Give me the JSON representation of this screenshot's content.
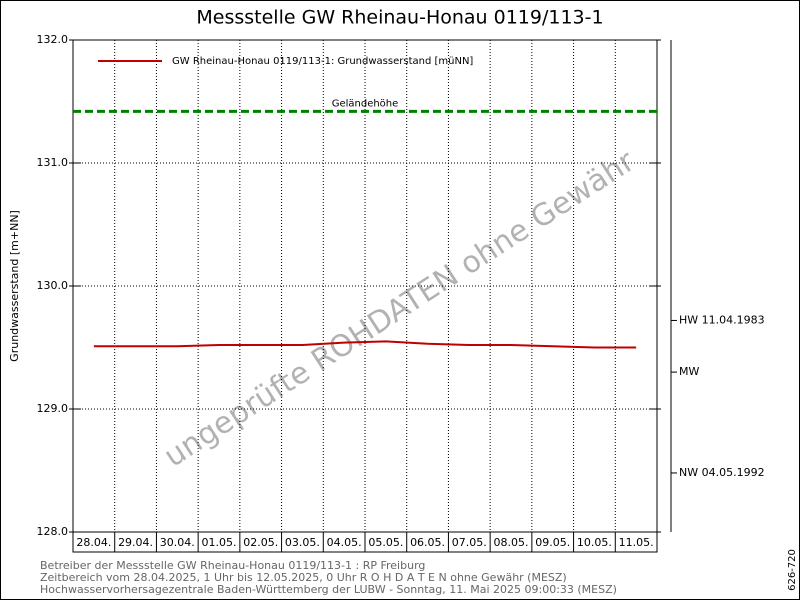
{
  "chart_data": {
    "type": "line",
    "title": "Messstelle GW Rheinau-Honau 0119/113-1",
    "ylabel": "Grundwasserstand [m+NN]",
    "categories": [
      "28.04.",
      "29.04.",
      "30.04.",
      "01.05.",
      "02.05.",
      "03.05.",
      "04.05.",
      "05.05.",
      "06.05.",
      "07.05.",
      "08.05.",
      "09.05.",
      "10.05.",
      "11.05."
    ],
    "series": [
      {
        "name": "GW Rheinau-Honau 0119/113-1: Grundwasserstand [müNN]",
        "color": "#c00000",
        "values": [
          129.51,
          129.51,
          129.51,
          129.52,
          129.52,
          129.52,
          129.54,
          129.55,
          129.53,
          129.52,
          129.52,
          129.51,
          129.5,
          129.5
        ]
      }
    ],
    "ylim": [
      128,
      132
    ],
    "yticks": [
      {
        "value": 128,
        "label": "128.0"
      },
      {
        "value": 129,
        "label": "129.0"
      },
      {
        "value": 130,
        "label": "130.0"
      },
      {
        "value": 131,
        "label": "131.0"
      },
      {
        "value": 132,
        "label": "132.0"
      }
    ],
    "grid": true,
    "reference_line": {
      "label": "Geländehöhe",
      "value": 131.42,
      "color": "#008000"
    },
    "levels": [
      {
        "label": "HW 11.04.1983",
        "value": 129.72
      },
      {
        "label": "MW",
        "value": 129.3
      },
      {
        "label": "NW 04.05.1992",
        "value": 128.48
      }
    ],
    "watermark": "ungeprüfte ROHDATEN ohne Gewähr",
    "footer": [
      "Betreiber der Messstelle GW Rheinau-Honau 0119/113-1 : RP Freiburg",
      "Zeitbereich vom 28.04.2025, 1 Uhr bis 12.05.2025, 0 Uhr   R O H D A T E N ohne Gewähr (MESZ)",
      "Hochwasservorhersagezentrale Baden-Württemberg der LUBW - Sonntag, 11. Mai 2025 09:00:33 (MESZ)"
    ],
    "code": "626-720"
  }
}
